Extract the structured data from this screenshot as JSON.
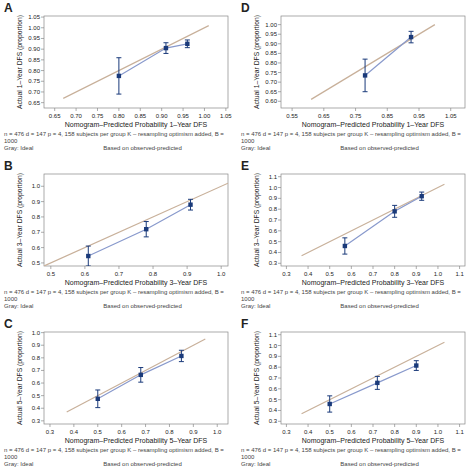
{
  "chart_data": [
    {
      "type": "line",
      "title": "A",
      "xlabel": "Nomogram–Predicted Probability 1–Year DFS",
      "ylabel": "Actual 1–Year DFS (proportion)",
      "series": [
        {
          "type": "line",
          "color": "#c8b09a",
          "x": [
            0.67,
            1.01
          ],
          "values": [
            0.67,
            1.01
          ]
        },
        {
          "type": "line",
          "color": "#8899cc",
          "x": [
            0.8,
            0.91,
            0.96
          ],
          "values": [
            0.775,
            0.905,
            0.925
          ]
        },
        {
          "type": "scatter",
          "color": "#1a3a7a",
          "marker": "square",
          "x": [
            0.8,
            0.91,
            0.96
          ],
          "values": [
            0.775,
            0.905,
            0.925
          ],
          "error_low": [
            0.085,
            0.025,
            0.018
          ],
          "error_high": [
            0.085,
            0.025,
            0.018
          ]
        }
      ],
      "xlim": [
        0.625,
        1.055
      ],
      "ylim": [
        0.625,
        1.055
      ],
      "xticks": [
        0.65,
        {
          "value": 0.7,
          "label": "0.70"
        },
        0.75,
        {
          "value": 0.8,
          "label": "0.80"
        },
        0.85,
        {
          "value": 0.9,
          "label": "0.90"
        },
        0.95,
        {
          "value": 1.0,
          "label": "1.00"
        },
        1.05
      ],
      "yticks": [
        0.65,
        {
          "value": 0.7,
          "label": "0.70"
        },
        0.75,
        {
          "value": 0.8,
          "label": "0.80"
        },
        0.85,
        {
          "value": 0.9,
          "label": "0.90"
        },
        0.95,
        {
          "value": 1.0,
          "label": "1.00"
        },
        1.05
      ],
      "grid": false,
      "annotations": [
        "n = 476 d = 147 p = 4, 158 subjects per group K – resampling optimism added, B = 1000",
        "Gray: Ideal                                          Based on observed-predicted"
      ]
    },
    {
      "type": "line",
      "title": "D",
      "xlabel": "Nomogram–Predicted Probability 1–Year DFS",
      "ylabel": "Actual 1–Year DFS (proportion)",
      "series": [
        {
          "type": "line",
          "color": "#c8b09a",
          "x": [
            0.61,
            1.0
          ],
          "values": [
            0.61,
            1.0
          ]
        },
        {
          "type": "line",
          "color": "#8899cc",
          "x": [
            0.78,
            0.925
          ],
          "values": [
            0.735,
            0.935
          ]
        },
        {
          "type": "scatter",
          "color": "#1a3a7a",
          "marker": "square",
          "x": [
            0.78,
            0.925
          ],
          "values": [
            0.735,
            0.935
          ],
          "error_low": [
            0.085,
            0.03
          ],
          "error_high": [
            0.085,
            0.03
          ]
        }
      ],
      "xlim": [
        0.515,
        1.095
      ],
      "ylim": [
        0.565,
        1.045
      ],
      "xticks": [
        0.55,
        0.65,
        0.75,
        0.85,
        0.95,
        1.05
      ],
      "yticks": [
        {
          "value": 0.6,
          "label": "0.60"
        },
        0.65,
        {
          "value": 0.7,
          "label": "0.70"
        },
        0.75,
        {
          "value": 0.8,
          "label": "0.80"
        },
        0.85,
        {
          "value": 0.9,
          "label": "0.90"
        },
        0.95,
        {
          "value": 1.0,
          "label": "1.00"
        }
      ],
      "grid": false,
      "annotations": [
        "n = 476 d = 147 p = 4, 158 subjects per group K – resampling optimism added, B = 1000",
        "Gray: Ideal                                          Based on observed-predicted"
      ]
    },
    {
      "type": "line",
      "title": "B",
      "xlabel": "Nomogram–Predicted Probability 3–Year DFS",
      "ylabel": "Actual 3–Year DFS (proportion)",
      "series": [
        {
          "type": "line",
          "color": "#c8b09a",
          "x": [
            0.48,
            1.02
          ],
          "values": [
            0.48,
            1.02
          ]
        },
        {
          "type": "line",
          "color": "#8899cc",
          "x": [
            0.61,
            0.78,
            0.91
          ],
          "values": [
            0.545,
            0.72,
            0.88
          ]
        },
        {
          "type": "scatter",
          "color": "#1a3a7a",
          "marker": "square",
          "x": [
            0.61,
            0.78,
            0.91
          ],
          "values": [
            0.545,
            0.72,
            0.88
          ],
          "error_low": [
            0.065,
            0.05,
            0.035
          ],
          "error_high": [
            0.065,
            0.05,
            0.035
          ]
        }
      ],
      "xlim": [
        0.48,
        1.02
      ],
      "ylim": [
        0.48,
        1.08
      ],
      "xticks": [
        0.5,
        0.6,
        0.7,
        0.8,
        0.9,
        {
          "value": 1.0,
          "label": "1.0"
        }
      ],
      "yticks": [
        0.5,
        0.6,
        0.7,
        0.8,
        0.9,
        {
          "value": 1.0,
          "label": "1.0"
        }
      ],
      "grid": false,
      "annotations": [
        "n = 476 d = 147 p = 4, 158 subjects per group K – resampling optimism added, B = 1000",
        "Gray: Ideal                                          Based on observed-predicted"
      ]
    },
    {
      "type": "line",
      "title": "E",
      "xlabel": "Nomogram–Predicted Probability 3–Year DFS",
      "ylabel": "Actual 3–Year DFS (proportion)",
      "series": [
        {
          "type": "line",
          "color": "#c8b09a",
          "x": [
            0.37,
            1.03
          ],
          "values": [
            0.37,
            1.03
          ]
        },
        {
          "type": "line",
          "color": "#8899cc",
          "x": [
            0.57,
            0.8,
            0.925
          ],
          "values": [
            0.46,
            0.78,
            0.92
          ]
        },
        {
          "type": "scatter",
          "color": "#1a3a7a",
          "marker": "square",
          "x": [
            0.57,
            0.8,
            0.925
          ],
          "values": [
            0.46,
            0.78,
            0.92
          ],
          "error_low": [
            0.075,
            0.055,
            0.038
          ],
          "error_high": [
            0.075,
            0.055,
            0.038
          ]
        }
      ],
      "xlim": [
        0.275,
        1.125
      ],
      "ylim": [
        0.275,
        1.125
      ],
      "xticks": [
        0.3,
        0.4,
        0.5,
        0.6,
        0.7,
        0.8,
        0.9,
        {
          "value": 1.0,
          "label": "1.0"
        },
        1.1
      ],
      "yticks": [
        0.3,
        0.4,
        0.5,
        0.6,
        0.7,
        0.8,
        0.9,
        {
          "value": 1.0,
          "label": "1.0"
        },
        1.1
      ],
      "grid": false,
      "annotations": [
        "n = 476 d = 147 p = 4, 158 subjects per group K – resampling optimism added, B = 1000",
        "Gray: Ideal                                          Based on observed-predicted"
      ]
    },
    {
      "type": "line",
      "title": "C",
      "xlabel": "Nomogram–Predicted Probability 5–Year DFS",
      "ylabel": "Actual 5–Year DFS (proportion)",
      "series": [
        {
          "type": "line",
          "color": "#c8b09a",
          "x": [
            0.37,
            0.95
          ],
          "values": [
            0.37,
            0.95
          ]
        },
        {
          "type": "line",
          "color": "#8899cc",
          "x": [
            0.5,
            0.68,
            0.85
          ],
          "values": [
            0.475,
            0.665,
            0.815
          ]
        },
        {
          "type": "scatter",
          "color": "#1a3a7a",
          "marker": "square",
          "x": [
            0.5,
            0.68,
            0.85
          ],
          "values": [
            0.475,
            0.665,
            0.815
          ],
          "error_low": [
            0.07,
            0.058,
            0.045
          ],
          "error_high": [
            0.07,
            0.058,
            0.045
          ]
        }
      ],
      "xlim": [
        0.275,
        1.045
      ],
      "ylim": [
        0.275,
        1.005
      ],
      "xticks": [
        0.3,
        0.4,
        0.5,
        0.6,
        0.7,
        0.8,
        0.9,
        {
          "value": 1.0,
          "label": "1.0"
        }
      ],
      "yticks": [
        0.3,
        0.4,
        0.5,
        0.6,
        0.7,
        0.8,
        0.9,
        {
          "value": 1.0,
          "label": "1.0"
        }
      ],
      "grid": false,
      "annotations": [
        "n = 476 d = 147 p = 4, 158 subjects per group K – resampling optimism added, B = 1000",
        "Gray: Ideal                                          Based on observed-predicted"
      ]
    },
    {
      "type": "line",
      "title": "F",
      "xlabel": "Nomogram–Predicted Probability 5–Year DFS",
      "ylabel": "Actual 5–Year DFS (proportion)",
      "series": [
        {
          "type": "line",
          "color": "#c8b09a",
          "x": [
            0.37,
            1.03
          ],
          "values": [
            0.37,
            1.03
          ]
        },
        {
          "type": "line",
          "color": "#8899cc",
          "x": [
            0.5,
            0.72,
            0.9
          ],
          "values": [
            0.46,
            0.655,
            0.815
          ]
        },
        {
          "type": "scatter",
          "color": "#1a3a7a",
          "marker": "square",
          "x": [
            0.5,
            0.72,
            0.9
          ],
          "values": [
            0.46,
            0.655,
            0.815
          ],
          "error_low": [
            0.075,
            0.06,
            0.045
          ],
          "error_high": [
            0.075,
            0.06,
            0.045
          ]
        }
      ],
      "xlim": [
        0.275,
        1.125
      ],
      "ylim": [
        0.275,
        1.125
      ],
      "xticks": [
        0.3,
        0.4,
        0.5,
        0.6,
        0.7,
        0.8,
        0.9,
        {
          "value": 1.0,
          "label": "1.0"
        },
        1.1
      ],
      "yticks": [
        0.3,
        0.4,
        0.5,
        0.6,
        0.7,
        0.8,
        0.9,
        {
          "value": 1.0,
          "label": "1.0"
        },
        1.1
      ],
      "grid": false,
      "annotations": [
        "n = 476 d = 147 p = 4, 158 subjects per group K – resampling optimism added, B = 1000",
        "Gray: Ideal                                          Based on observed-predicted"
      ]
    }
  ]
}
